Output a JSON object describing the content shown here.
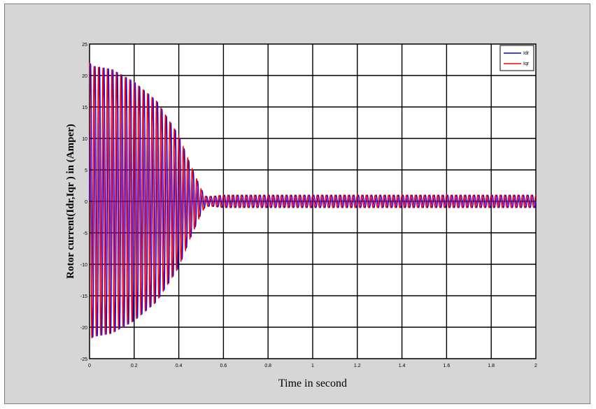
{
  "chart_data": {
    "type": "line",
    "title": "",
    "xlabel": "Time in second",
    "ylabel": "Rotor current(Idr,Iqr ) in (Amper)",
    "xlim": [
      0,
      2
    ],
    "ylim": [
      -25,
      25
    ],
    "x_ticks": [
      0,
      0.2,
      0.4,
      0.6,
      0.8,
      1,
      1.2,
      1.4,
      1.6,
      1.8,
      2
    ],
    "x_tick_labels": [
      "0",
      "0.2",
      "0.4",
      "0.6",
      "0.8",
      "1",
      "1.2",
      "1.4",
      "1.6",
      "1.8",
      "2"
    ],
    "y_ticks": [
      -25,
      -20,
      -15,
      -10,
      -5,
      0,
      5,
      10,
      15,
      20,
      25
    ],
    "y_tick_labels": [
      "-25",
      "-20",
      "-15",
      "-10",
      "-5",
      "0",
      "5",
      "10",
      "15",
      "20",
      "25"
    ],
    "grid": true,
    "legend_position": "top-right",
    "oscillation_frequency_hz": 50,
    "envelope": {
      "time": [
        0,
        0.02,
        0.1,
        0.2,
        0.3,
        0.4,
        0.45,
        0.5,
        0.52,
        0.55,
        0.6,
        1.0,
        1.5,
        2.0
      ],
      "amplitude": [
        22,
        21.5,
        21,
        19,
        16,
        10.5,
        6,
        2,
        0.8,
        0.8,
        1.0,
        1.0,
        1.0,
        1.0
      ]
    },
    "series": [
      {
        "name": "Idr",
        "color": "#0000ff",
        "phase_deg": 0
      },
      {
        "name": "Iqr",
        "color": "#ff0000",
        "phase_deg": 90
      }
    ]
  }
}
